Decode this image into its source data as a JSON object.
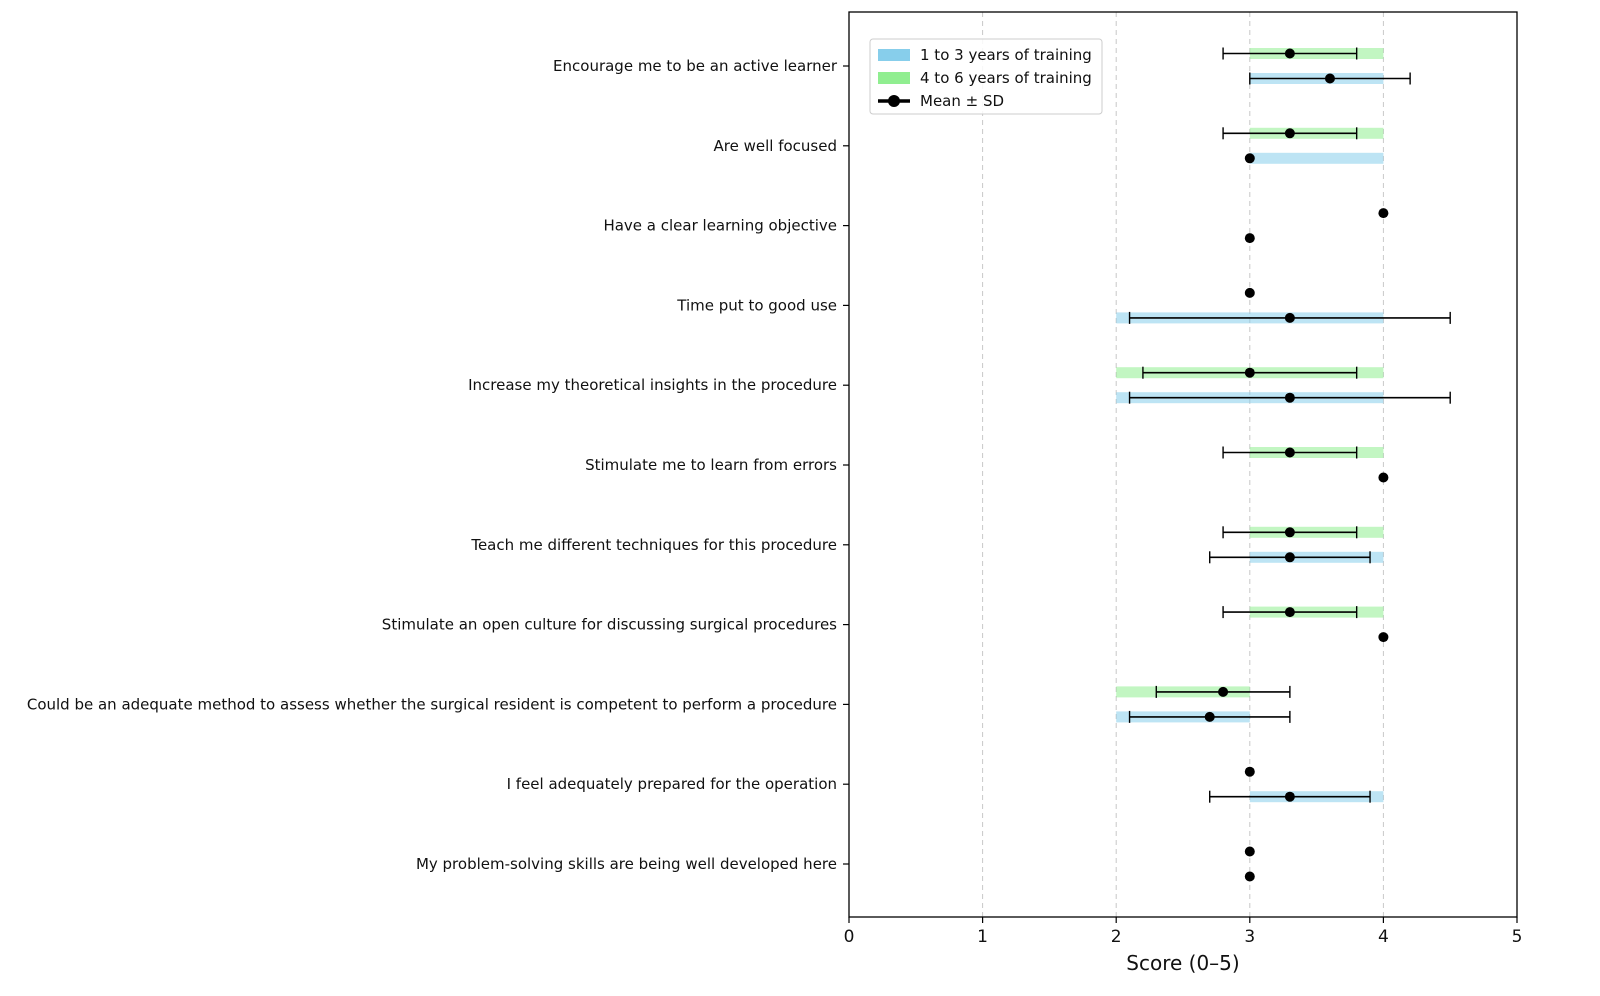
{
  "chart_data": {
    "type": "range-bar-errorbar",
    "xlabel": "Score (0–5)",
    "xlim": [
      0,
      5
    ],
    "xticks": [
      "0",
      "1",
      "2",
      "3",
      "4",
      "5"
    ],
    "grid": "x-dashed",
    "legend": {
      "placement": "top-left",
      "entries": [
        {
          "label": "1 to 3 years of training",
          "color": "#87ceeb"
        },
        {
          "label": "4 to 6 years of training",
          "color": "#90ee90"
        },
        {
          "label": "Mean ± SD",
          "color": "#000000"
        }
      ]
    },
    "categories": [
      "Encourage me to be an active learner",
      "Are well focused",
      "Have a clear learning objective",
      "Time put to good use",
      "Increase my theoretical insights in the procedure",
      "Stimulate me to learn from errors",
      "Teach me different techniques for this procedure",
      "Stimulate an open culture for discussing surgical procedures",
      "Could be an adequate method to assess whether the surgical resident is competent to perform a procedure",
      "I feel adequately prepared for the operation",
      "My problem-solving skills are being well developed here"
    ],
    "series": [
      {
        "name": "4 to 6 years of training",
        "color": "#90ee90",
        "ranges": [
          [
            3,
            4
          ],
          [
            3,
            4
          ],
          [
            4,
            4
          ],
          [
            3,
            3
          ],
          [
            2,
            4
          ],
          [
            3,
            4
          ],
          [
            3,
            4
          ],
          [
            3,
            4
          ],
          [
            2,
            3
          ],
          [
            3,
            3
          ],
          [
            3,
            3
          ]
        ],
        "means": [
          3.3,
          3.3,
          4.0,
          3.0,
          3.0,
          3.3,
          3.3,
          3.3,
          2.8,
          3.0,
          3.0
        ],
        "sd": [
          0.5,
          0.5,
          0.0,
          0.0,
          0.8,
          0.5,
          0.5,
          0.5,
          0.5,
          0.0,
          0.0
        ]
      },
      {
        "name": "1 to 3 years of training",
        "color": "#87ceeb",
        "ranges": [
          [
            3,
            4
          ],
          [
            3,
            4
          ],
          [
            3,
            3
          ],
          [
            2,
            4
          ],
          [
            2,
            4
          ],
          [
            4,
            4
          ],
          [
            3,
            4
          ],
          [
            4,
            4
          ],
          [
            2,
            3
          ],
          [
            3,
            4
          ],
          [
            3,
            3
          ]
        ],
        "means": [
          3.6,
          3.0,
          3.0,
          3.3,
          3.3,
          4.0,
          3.3,
          4.0,
          2.7,
          3.3,
          3.0
        ],
        "sd": [
          0.6,
          0.0,
          0.0,
          1.2,
          1.2,
          0.0,
          0.6,
          0.0,
          0.6,
          0.6,
          0.0
        ]
      }
    ]
  }
}
